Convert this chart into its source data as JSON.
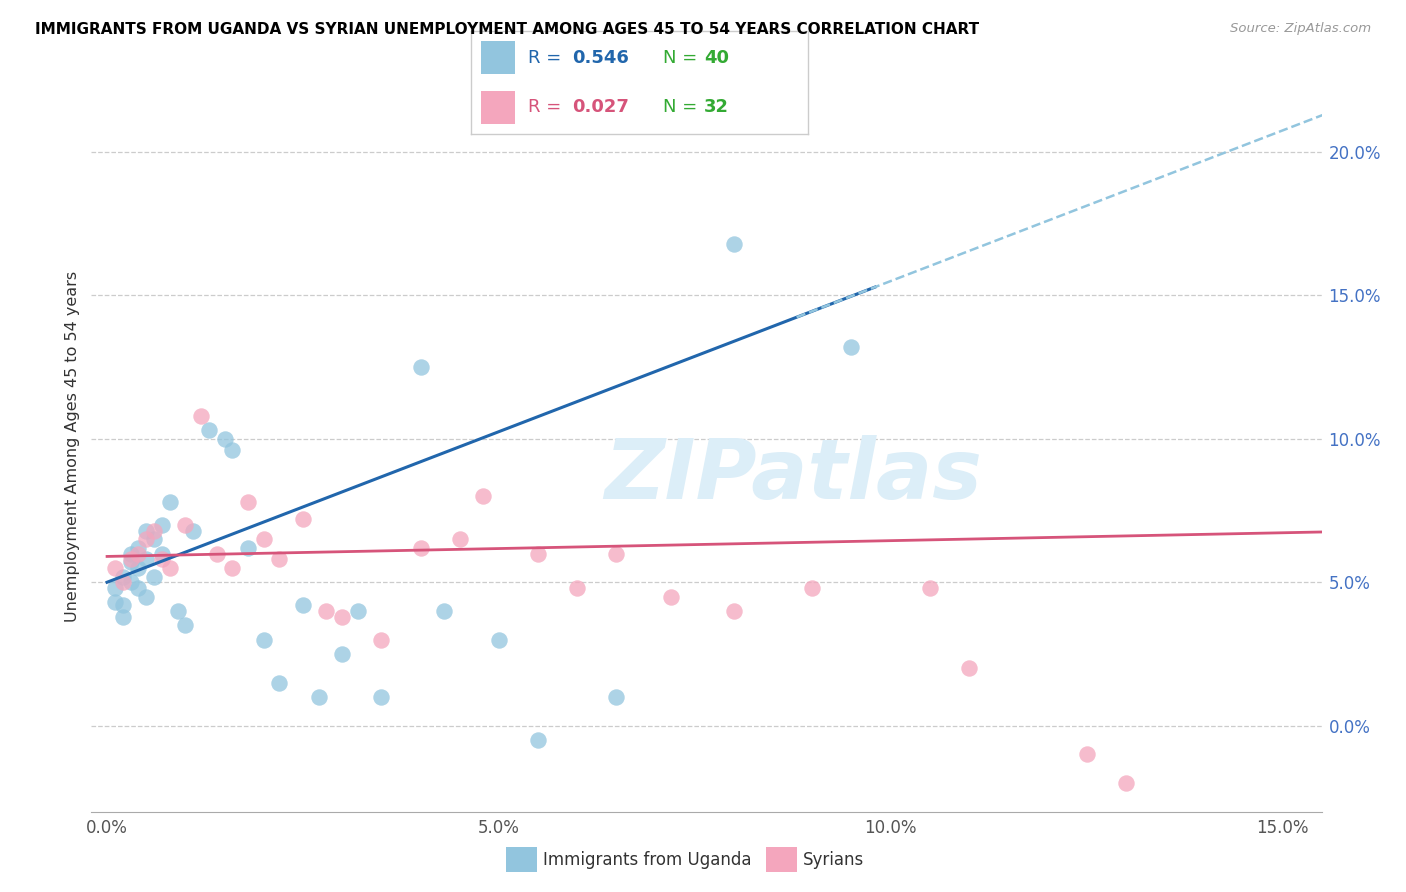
{
  "title": "IMMIGRANTS FROM UGANDA VS SYRIAN UNEMPLOYMENT AMONG AGES 45 TO 54 YEARS CORRELATION CHART",
  "source": "Source: ZipAtlas.com",
  "ylabel": "Unemployment Among Ages 45 to 54 years",
  "xlim": [
    -0.002,
    0.155
  ],
  "ylim": [
    -0.03,
    0.225
  ],
  "xticks": [
    0.0,
    0.05,
    0.1,
    0.15
  ],
  "yticks": [
    0.0,
    0.05,
    0.1,
    0.15,
    0.2
  ],
  "ytick_labels": [
    "0.0%",
    "5.0%",
    "10.0%",
    "15.0%",
    "20.0%"
  ],
  "xtick_labels": [
    "0.0%",
    "5.0%",
    "10.0%",
    "15.0%"
  ],
  "R_uganda": 0.546,
  "N_uganda": 40,
  "R_syrian": 0.027,
  "N_syrian": 32,
  "color_uganda": "#92c5de",
  "color_syrian": "#f4a6bd",
  "color_uganda_line": "#2166ac",
  "color_syrian_line": "#d6547a",
  "color_dashed": "#92c5de",
  "watermark_color": "#dceef8",
  "watermark": "ZIPatlas",
  "uganda_x": [
    0.001,
    0.001,
    0.002,
    0.002,
    0.002,
    0.003,
    0.003,
    0.003,
    0.004,
    0.004,
    0.004,
    0.005,
    0.005,
    0.005,
    0.006,
    0.006,
    0.007,
    0.007,
    0.008,
    0.009,
    0.01,
    0.011,
    0.013,
    0.015,
    0.016,
    0.018,
    0.02,
    0.022,
    0.025,
    0.027,
    0.03,
    0.032,
    0.035,
    0.04,
    0.043,
    0.05,
    0.055,
    0.065,
    0.08,
    0.095
  ],
  "uganda_y": [
    0.048,
    0.043,
    0.052,
    0.042,
    0.038,
    0.06,
    0.057,
    0.05,
    0.062,
    0.055,
    0.048,
    0.068,
    0.058,
    0.045,
    0.065,
    0.052,
    0.07,
    0.06,
    0.078,
    0.04,
    0.035,
    0.068,
    0.103,
    0.1,
    0.096,
    0.062,
    0.03,
    0.015,
    0.042,
    0.01,
    0.025,
    0.04,
    0.01,
    0.125,
    0.04,
    0.03,
    -0.005,
    0.01,
    0.168,
    0.132
  ],
  "syrian_x": [
    0.001,
    0.002,
    0.003,
    0.004,
    0.005,
    0.006,
    0.007,
    0.008,
    0.01,
    0.012,
    0.014,
    0.016,
    0.018,
    0.02,
    0.022,
    0.025,
    0.028,
    0.03,
    0.035,
    0.04,
    0.045,
    0.048,
    0.055,
    0.06,
    0.065,
    0.072,
    0.08,
    0.09,
    0.105,
    0.11,
    0.125,
    0.13
  ],
  "syrian_y": [
    0.055,
    0.05,
    0.058,
    0.06,
    0.065,
    0.068,
    0.058,
    0.055,
    0.07,
    0.108,
    0.06,
    0.055,
    0.078,
    0.065,
    0.058,
    0.072,
    0.04,
    0.038,
    0.03,
    0.062,
    0.065,
    0.08,
    0.06,
    0.048,
    0.06,
    0.045,
    0.04,
    0.048,
    0.048,
    0.02,
    -0.01,
    -0.02
  ],
  "blue_line_x": [
    0.0,
    0.098
  ],
  "blue_line_y_start": 0.05,
  "blue_line_slope": 1.05,
  "pink_line_x": [
    0.0,
    0.155
  ],
  "pink_line_y_start": 0.059,
  "pink_line_slope": 0.055
}
